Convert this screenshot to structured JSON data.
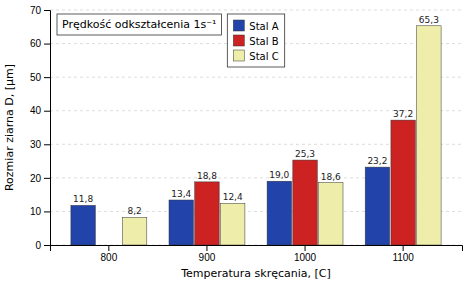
{
  "chart_data": {
    "type": "bar",
    "title": "Prędkość odkształcenia 1s⁻¹",
    "xlabel": "Temperatura skręcania, [C]",
    "ylabel": "Rozmiar ziarna D, [µm]",
    "categories": [
      "800",
      "900",
      "1000",
      "1100"
    ],
    "series": [
      {
        "name": "Stal A",
        "color": "#2244aa",
        "values": [
          11.8,
          13.4,
          19.0,
          23.2
        ],
        "value_labels": [
          "11,8",
          "13,4",
          "19,0",
          "23,2"
        ]
      },
      {
        "name": "Stal B",
        "color": "#cc2222",
        "values": [
          null,
          18.8,
          25.3,
          37.2
        ],
        "value_labels": [
          null,
          "18,8",
          "25,3",
          "37,2"
        ]
      },
      {
        "name": "Stal C",
        "color": "#eeeeaa",
        "values": [
          8.2,
          12.4,
          18.6,
          65.3
        ],
        "value_labels": [
          "8,2",
          "12,4",
          "18,6",
          "65,3"
        ]
      }
    ],
    "ylim": [
      0,
      70
    ],
    "yticks": [
      0,
      10,
      20,
      30,
      40,
      50,
      60,
      70
    ],
    "grid": true,
    "data_labels": true,
    "legend": "upper center"
  }
}
